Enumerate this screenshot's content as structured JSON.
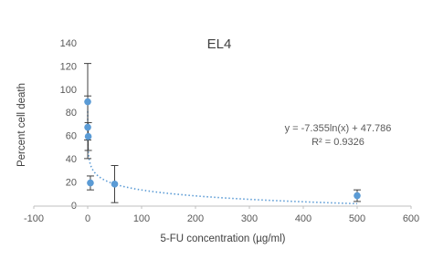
{
  "chart_data": {
    "type": "scatter",
    "title": "EL4",
    "x_label": "5-FU concentration (µg/ml)",
    "y_label": "Percent cell death",
    "series": [
      {
        "color": "#5b9bd5",
        "x": [
          0.01,
          0.1,
          1,
          5,
          50,
          500
        ],
        "values": [
          90,
          68,
          60,
          20,
          19,
          9
        ],
        "errors": [
          33,
          27,
          12,
          6,
          16,
          5
        ]
      }
    ],
    "trendline": {
      "type": "log",
      "a": -7.355,
      "b": 47.786,
      "color": "#5b9bd5",
      "equation": "y = -7.355ln(x) + 47.786",
      "r2": "R² = 0.9326"
    },
    "xlim": [
      -100,
      600
    ],
    "xticks": [
      -100,
      0,
      100,
      200,
      300,
      400,
      500,
      600
    ],
    "ylim": [
      0,
      140
    ],
    "yticks": [
      0,
      20,
      40,
      60,
      80,
      100,
      120,
      140
    ],
    "grid": false
  }
}
